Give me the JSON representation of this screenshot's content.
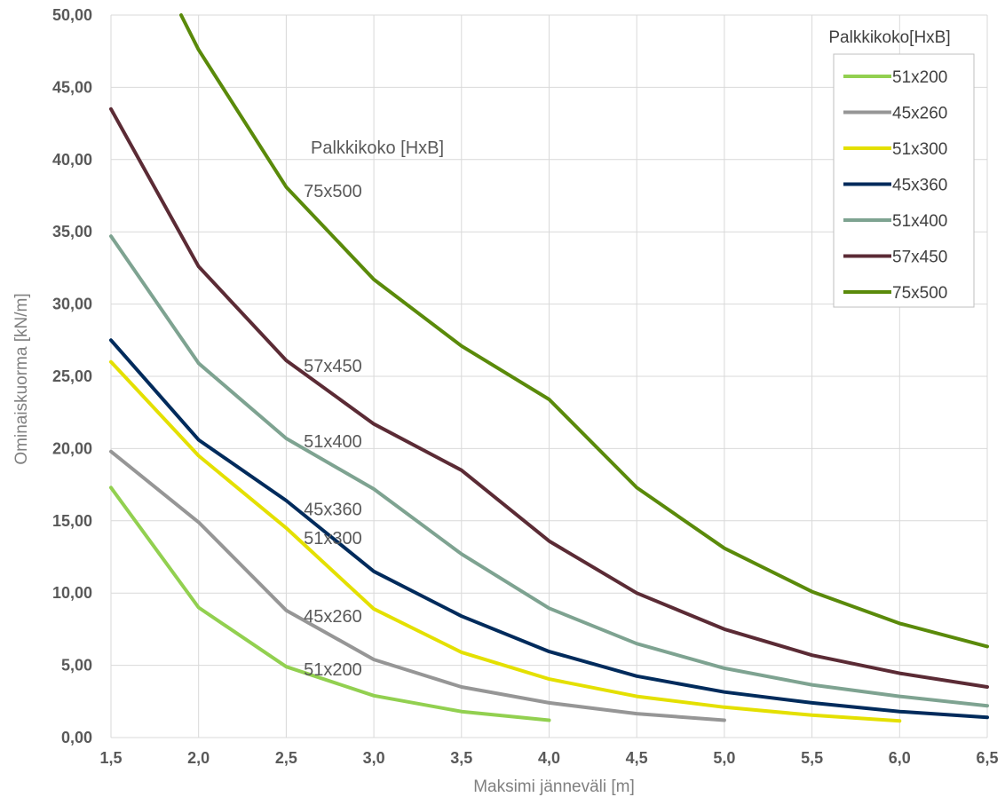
{
  "chart_data": {
    "type": "line",
    "title": "",
    "xlabel": "Maksimi jänneväli [m]",
    "ylabel": "Ominaiskuorma [kN/m]",
    "xlim": [
      1.5,
      6.5
    ],
    "ylim": [
      0,
      50
    ],
    "xticks": [
      "1,5",
      "2,0",
      "2,5",
      "3,0",
      "3,5",
      "4,0",
      "4,5",
      "5,0",
      "5,5",
      "6,0",
      "6,5"
    ],
    "yticks": [
      "0,00",
      "5,00",
      "10,00",
      "15,00",
      "20,00",
      "25,00",
      "30,00",
      "35,00",
      "40,00",
      "45,00",
      "50,00"
    ],
    "grid": true,
    "legend": {
      "title": "Palkkikoko[HxB]",
      "position": "top-right"
    },
    "annotation_title": "Palkkikoko [HxB]",
    "series": [
      {
        "name": "51x200",
        "color": "#92d050",
        "x": [
          1.5,
          2.0,
          2.5,
          3.0,
          3.5,
          4.0
        ],
        "y": [
          17.3,
          9.0,
          4.9,
          2.9,
          1.8,
          1.2
        ]
      },
      {
        "name": "45x260",
        "color": "#969696",
        "x": [
          1.5,
          2.0,
          2.5,
          3.0,
          3.5,
          4.0,
          4.5,
          5.0
        ],
        "y": [
          19.8,
          14.9,
          8.8,
          5.4,
          3.5,
          2.4,
          1.65,
          1.2
        ]
      },
      {
        "name": "51x300",
        "color": "#e4e000",
        "x": [
          1.5,
          2.0,
          2.5,
          3.0,
          3.5,
          4.0,
          4.5,
          5.0,
          5.5,
          6.0
        ],
        "y": [
          26.0,
          19.5,
          14.5,
          8.9,
          5.9,
          4.05,
          2.85,
          2.1,
          1.55,
          1.15
        ]
      },
      {
        "name": "45x360",
        "color": "#002b5c",
        "x": [
          1.5,
          2.0,
          2.5,
          3.0,
          3.5,
          4.0,
          4.5,
          5.0,
          5.5,
          6.0,
          6.5
        ],
        "y": [
          27.5,
          20.6,
          16.4,
          11.5,
          8.4,
          5.95,
          4.25,
          3.15,
          2.4,
          1.8,
          1.4
        ]
      },
      {
        "name": "51x400",
        "color": "#7ea391",
        "x": [
          1.5,
          2.0,
          2.5,
          3.0,
          3.5,
          4.0,
          4.5,
          5.0,
          5.5,
          6.0,
          6.5
        ],
        "y": [
          34.7,
          25.9,
          20.7,
          17.2,
          12.7,
          8.95,
          6.5,
          4.8,
          3.65,
          2.85,
          2.2
        ]
      },
      {
        "name": "57x450",
        "color": "#5b2b35",
        "x": [
          1.5,
          2.0,
          2.5,
          3.0,
          3.5,
          4.0,
          4.5,
          5.0,
          5.5,
          6.0,
          6.5
        ],
        "y": [
          43.5,
          32.6,
          26.1,
          21.7,
          18.5,
          13.6,
          10.0,
          7.5,
          5.7,
          4.45,
          3.5
        ]
      },
      {
        "name": "75x500",
        "color": "#5a8a0a",
        "x": [
          1.9,
          2.0,
          2.5,
          3.0,
          3.5,
          4.0,
          4.5,
          5.0,
          5.5,
          6.0,
          6.5
        ],
        "y": [
          50.0,
          47.6,
          38.1,
          31.7,
          27.1,
          23.4,
          17.3,
          13.1,
          10.1,
          7.9,
          6.3
        ]
      }
    ],
    "inline_labels": [
      {
        "text": "75x500",
        "x": 2.6,
        "y": 37.4
      },
      {
        "text": "57x450",
        "x": 2.6,
        "y": 25.3
      },
      {
        "text": "51x400",
        "x": 2.6,
        "y": 20.1
      },
      {
        "text": "45x360",
        "x": 2.6,
        "y": 15.4
      },
      {
        "text": "51x300",
        "x": 2.6,
        "y": 13.4
      },
      {
        "text": "45x260",
        "x": 2.6,
        "y": 8.0
      },
      {
        "text": "51x200",
        "x": 2.6,
        "y": 4.3
      }
    ]
  }
}
